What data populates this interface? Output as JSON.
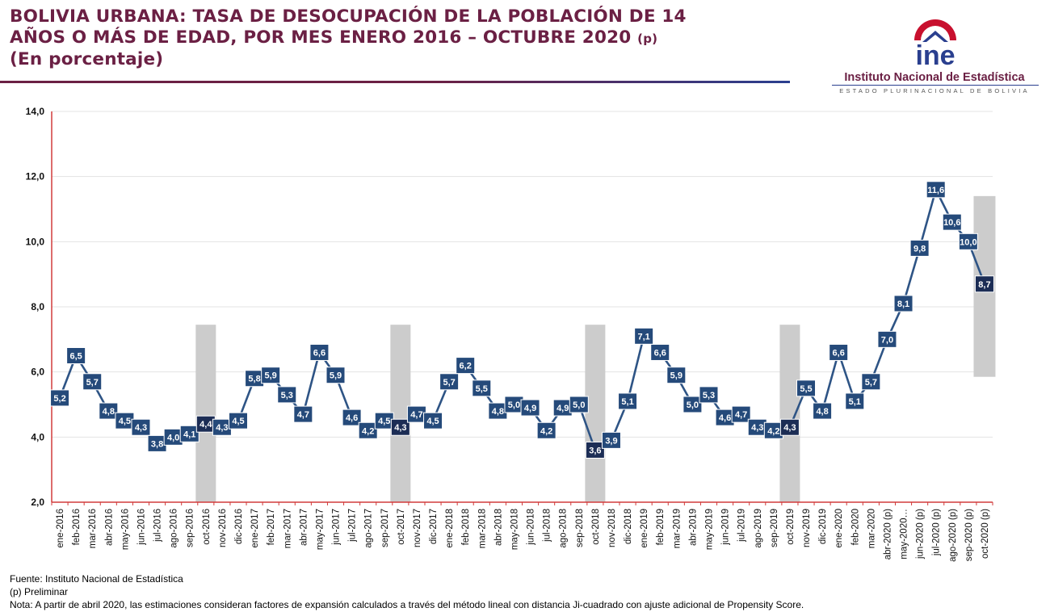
{
  "title": {
    "line1": "BOLIVIA URBANA: TASA DE DESOCUPACIÓN DE LA POBLACIÓN DE 14",
    "line2": "AÑOS O MÁS DE EDAD, POR MES ENERO 2016 – OCTUBRE 2020",
    "line2_suffix": "(p)",
    "line3": "(En porcentaje)"
  },
  "logo": {
    "acronym": "ine",
    "name": "Instituto Nacional de Estadística",
    "subtitle": "ESTADO PLURINACIONAL DE BOLIVIA"
  },
  "footer": {
    "source": "Fuente: Instituto Nacional de Estadística",
    "preliminary": "(p) Preliminar",
    "note": "Nota: A partir de abril 2020, las estimaciones consideran factores de expansión calculados a través del método lineal con distancia Ji-cuadrado con ajuste adicional de Propensity Score."
  },
  "colors": {
    "title": "#6b2044",
    "line": "#2e5485",
    "marker": "#254a7a",
    "marker_dark": "#1c2d55",
    "axis": "#d23b3b",
    "highlight": "#cccccc"
  },
  "chart_data": {
    "type": "line",
    "ylim": [
      2.0,
      14.0
    ],
    "ytick_values": [
      2.0,
      4.0,
      6.0,
      8.0,
      10.0,
      12.0,
      14.0
    ],
    "ytick_labels": [
      "2,0",
      "4,0",
      "6,0",
      "8,0",
      "10,0",
      "12,0",
      "14,0"
    ],
    "grid": true,
    "categories": [
      "ene-2016",
      "feb-2016",
      "mar-2016",
      "abr-2016",
      "may-2016",
      "jun-2016",
      "jul-2016",
      "ago-2016",
      "sep-2016",
      "oct-2016",
      "nov-2016",
      "dic-2016",
      "ene-2017",
      "feb-2017",
      "mar-2017",
      "abr-2017",
      "may-2017",
      "jun-2017",
      "jul-2017",
      "ago-2017",
      "sep-2017",
      "oct-2017",
      "nov-2017",
      "dic-2017",
      "ene-2018",
      "feb-2018",
      "mar-2018",
      "abr-2018",
      "may-2018",
      "jun-2018",
      "jul-2018",
      "ago-2018",
      "sep-2018",
      "oct-2018",
      "nov-2018",
      "dic-2018",
      "ene-2019",
      "feb-2019",
      "mar-2019",
      "abr-2019",
      "may-2019",
      "jun-2019",
      "jul-2019",
      "ago-2019",
      "sep-2019",
      "oct-2019",
      "nov-2019",
      "dic-2019",
      "ene-2020",
      "feb-2020",
      "mar-2020",
      "abr-2020 (p)",
      "may-2020…",
      "jun-2020 (p)",
      "jul-2020 (p)",
      "ago-2020 (p)",
      "sep-2020 (p)",
      "oct-2020 (p)"
    ],
    "values": [
      5.2,
      6.5,
      5.7,
      4.8,
      4.5,
      4.3,
      3.8,
      4.0,
      4.1,
      4.4,
      4.3,
      4.5,
      5.8,
      5.9,
      5.3,
      4.7,
      6.6,
      5.9,
      4.6,
      4.2,
      4.5,
      4.3,
      4.7,
      4.5,
      5.7,
      6.2,
      5.5,
      4.8,
      5.0,
      4.9,
      4.2,
      4.9,
      5.0,
      3.6,
      3.9,
      5.1,
      7.1,
      6.6,
      5.9,
      5.0,
      5.3,
      4.6,
      4.7,
      4.3,
      4.2,
      4.3,
      5.5,
      4.8,
      6.6,
      5.1,
      5.7,
      7.0,
      8.1,
      9.8,
      11.6,
      10.6,
      10.0,
      8.7
    ],
    "value_labels": [
      "5,2",
      "6,5",
      "5,7",
      "4,8",
      "4,5",
      "4,3",
      "3,8",
      "4,0",
      "4,1",
      "4,4",
      "4,3",
      "4,5",
      "5,8",
      "5,9",
      "5,3",
      "4,7",
      "6,6",
      "5,9",
      "4,6",
      "4,2",
      "4,5",
      "4,3",
      "4,7",
      "4,5",
      "5,7",
      "6,2",
      "5,5",
      "4,8",
      "5,0",
      "4,9",
      "4,2",
      "4,9",
      "5,0",
      "3,6",
      "3,9",
      "5,1",
      "7,1",
      "6,6",
      "5,9",
      "5,0",
      "5,3",
      "4,6",
      "4,7",
      "4,3",
      "4,2",
      "4,3",
      "5,5",
      "4,8",
      "6,6",
      "5,1",
      "5,7",
      "7,0",
      "8,1",
      "9,8",
      "11,6",
      "10,6",
      "10,0",
      "8,7"
    ],
    "highlighted_categories": [
      "oct-2016",
      "oct-2017",
      "oct-2018",
      "oct-2019",
      "oct-2020 (p)"
    ]
  }
}
